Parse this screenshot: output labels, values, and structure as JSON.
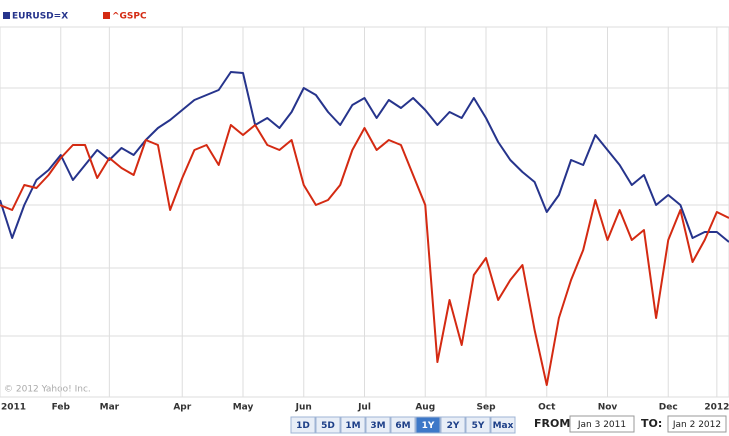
{
  "chart_data": {
    "type": "line",
    "categories": [
      "2011",
      null,
      null,
      null,
      null,
      "Feb",
      null,
      null,
      null,
      "Mar",
      null,
      null,
      null,
      null,
      null,
      "Apr",
      null,
      null,
      null,
      null,
      "May",
      null,
      null,
      null,
      null,
      "Jun",
      null,
      null,
      null,
      null,
      "Jul",
      null,
      null,
      null,
      null,
      "Aug",
      null,
      null,
      null,
      null,
      "Sep",
      null,
      null,
      null,
      null,
      "Oct",
      null,
      null,
      null,
      null,
      "Nov",
      null,
      null,
      null,
      null,
      "Dec",
      null,
      null,
      null,
      "2012",
      null
    ],
    "series": [
      {
        "name": "EURUSD=X",
        "color": "#26348c",
        "values": [
          197,
          159,
          192,
          217,
          227,
          242,
          217,
          232,
          247,
          237,
          249,
          242,
          257,
          269,
          277,
          287,
          297,
          302,
          307,
          325,
          324,
          272,
          279,
          269,
          285,
          309,
          302,
          285,
          272,
          292,
          299,
          279,
          297,
          289,
          299,
          287,
          272,
          285,
          279,
          299,
          279,
          255,
          237,
          225,
          215,
          185,
          202,
          237,
          232,
          262,
          247,
          232,
          212,
          222,
          192,
          202,
          192,
          159,
          165,
          165,
          155
        ]
      },
      {
        "name": "^GSPC",
        "color": "#d42a12",
        "values": [
          192,
          187,
          212,
          209,
          222,
          239,
          252,
          252,
          219,
          239,
          229,
          222,
          257,
          252,
          187,
          219,
          247,
          252,
          232,
          272,
          262,
          272,
          252,
          247,
          257,
          212,
          192,
          197,
          212,
          247,
          269,
          247,
          257,
          252,
          222,
          192,
          35,
          97,
          52,
          122,
          139,
          97,
          117,
          132,
          67,
          12,
          79,
          117,
          147,
          197,
          157,
          187,
          157,
          167,
          79,
          157,
          187,
          135,
          157,
          185,
          179
        ]
      }
    ],
    "ylim": [
      0,
      370
    ],
    "yticks": [
      61,
      129,
      192,
      254,
      309
    ],
    "grid": true,
    "credit": "© 2012 Yahoo! Inc."
  },
  "controls": {
    "ranges": [
      "1D",
      "5D",
      "1M",
      "3M",
      "6M",
      "1Y",
      "2Y",
      "5Y",
      "Max"
    ],
    "selected": "1Y",
    "from_label": "FROM:",
    "from": "Jan 3 2011",
    "to_label": "TO:",
    "to": "Jan 2 2012"
  }
}
